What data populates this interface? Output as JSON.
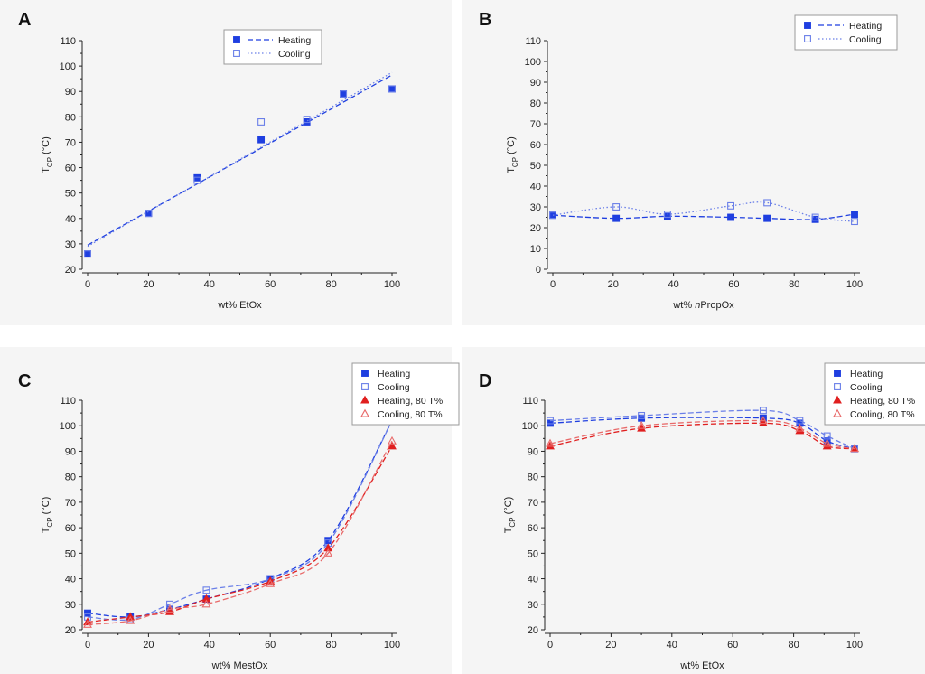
{
  "colors": {
    "blue": "#1f3fe0",
    "blue_light": "#6a7fe8",
    "red": "#e01f1f",
    "red_light": "#e86a6a"
  },
  "chart_data": [
    {
      "id": "A",
      "type": "scatter",
      "panel_label": "A",
      "xlabel": "wt% EtOx",
      "ylabel": "T",
      "ylabel_sub": "CP",
      "ylabel_unit": "(°C)",
      "xlim": [
        0,
        100
      ],
      "ylim": [
        20,
        110
      ],
      "xticks": [
        0,
        20,
        40,
        60,
        80,
        100
      ],
      "yticks": [
        20,
        30,
        40,
        50,
        60,
        70,
        80,
        90,
        100,
        110
      ],
      "legend_position": "top-right",
      "series": [
        {
          "name": "Heating",
          "marker": "filled-square",
          "color": "blue",
          "line": "dashed",
          "x": [
            0,
            20,
            36,
            57,
            72,
            84,
            100
          ],
          "y": [
            26,
            42,
            56,
            71,
            78,
            89,
            91
          ],
          "fit": {
            "kind": "linear",
            "slope": 0.67,
            "intercept": 29.5
          }
        },
        {
          "name": "Cooling",
          "marker": "open-square",
          "color": "blue_light",
          "line": "dotted",
          "x": [
            0,
            20,
            36,
            57,
            72,
            84,
            100
          ],
          "y": [
            26,
            42,
            55,
            78,
            79,
            89,
            91
          ],
          "fit": {
            "kind": "linear",
            "slope": 0.685,
            "intercept": 29.0
          }
        }
      ]
    },
    {
      "id": "B",
      "type": "scatter",
      "panel_label": "B",
      "xlabel_prefix": "wt% ",
      "xlabel_italic": "n",
      "xlabel_rest": "PropOx",
      "ylabel": "T",
      "ylabel_sub": "CP",
      "ylabel_unit": "(°C)",
      "xlim": [
        0,
        100
      ],
      "ylim": [
        0,
        110
      ],
      "xticks": [
        0,
        20,
        40,
        60,
        80,
        100
      ],
      "yticks": [
        0,
        10,
        20,
        30,
        40,
        50,
        60,
        70,
        80,
        90,
        100,
        110
      ],
      "legend_position": "top-right",
      "series": [
        {
          "name": "Heating",
          "marker": "filled-square",
          "color": "blue",
          "line": "dashed",
          "x": [
            0,
            21,
            38,
            59,
            71,
            87,
            100
          ],
          "y": [
            26,
            24.5,
            25.5,
            25,
            24.5,
            24,
            26.5
          ],
          "fit": {
            "kind": "smooth"
          }
        },
        {
          "name": "Cooling",
          "marker": "open-square",
          "color": "blue_light",
          "line": "dotted",
          "x": [
            0,
            21,
            38,
            59,
            71,
            87,
            100
          ],
          "y": [
            26,
            30,
            26.5,
            30.5,
            32,
            25,
            23
          ],
          "fit": {
            "kind": "smooth"
          }
        }
      ]
    },
    {
      "id": "C",
      "type": "scatter",
      "panel_label": "C",
      "xlabel": "wt% MestOx",
      "ylabel": "T",
      "ylabel_sub": "CP",
      "ylabel_unit": "(°C)",
      "xlim": [
        0,
        100
      ],
      "ylim": [
        20,
        110
      ],
      "xticks": [
        0,
        20,
        40,
        60,
        80,
        100
      ],
      "yticks": [
        20,
        30,
        40,
        50,
        60,
        70,
        80,
        90,
        100,
        110
      ],
      "legend_position": "top-right",
      "series": [
        {
          "name": "Heating",
          "marker": "filled-square",
          "color": "blue",
          "line": "dashed",
          "x": [
            0,
            14,
            27,
            39,
            60,
            79,
            100
          ],
          "y": [
            26.5,
            25,
            28,
            32,
            40,
            55,
            102
          ],
          "fit": {
            "kind": "smooth"
          }
        },
        {
          "name": "Cooling",
          "marker": "open-square",
          "color": "blue_light",
          "line": "dashed",
          "x": [
            0,
            14,
            27,
            39,
            60,
            79,
            100
          ],
          "y": [
            25,
            24,
            30,
            35.5,
            40,
            54,
            102
          ],
          "fit": {
            "kind": "smooth"
          }
        },
        {
          "name": "Heating, 80 T%",
          "marker": "filled-triangle",
          "color": "red",
          "line": "dashed",
          "x": [
            0,
            14,
            27,
            39,
            60,
            79,
            100
          ],
          "y": [
            23,
            25,
            27,
            32,
            39,
            52,
            92
          ],
          "fit": {
            "kind": "smooth"
          }
        },
        {
          "name": "Cooling, 80 T%",
          "marker": "open-triangle",
          "color": "red_light",
          "line": "dashed",
          "x": [
            0,
            14,
            27,
            39,
            60,
            79,
            100
          ],
          "y": [
            22,
            23.5,
            28,
            30,
            38,
            50,
            94
          ],
          "fit": {
            "kind": "smooth"
          }
        }
      ]
    },
    {
      "id": "D",
      "type": "scatter",
      "panel_label": "D",
      "xlabel": "wt% EtOx",
      "ylabel": "T",
      "ylabel_sub": "CP",
      "ylabel_unit": "(°C)",
      "xlim": [
        0,
        100
      ],
      "ylim": [
        20,
        110
      ],
      "xticks": [
        0,
        20,
        40,
        60,
        80,
        100
      ],
      "yticks": [
        20,
        30,
        40,
        50,
        60,
        70,
        80,
        90,
        100,
        110
      ],
      "legend_position": "top-right",
      "series": [
        {
          "name": "Heating",
          "marker": "filled-square",
          "color": "blue",
          "line": "dashed",
          "x": [
            0,
            30,
            70,
            82,
            91,
            100
          ],
          "y": [
            101,
            103,
            103,
            101,
            94,
            91
          ],
          "fit": {
            "kind": "smooth"
          }
        },
        {
          "name": "Cooling",
          "marker": "open-square",
          "color": "blue_light",
          "line": "dashed",
          "x": [
            0,
            30,
            70,
            82,
            91,
            100
          ],
          "y": [
            102,
            104,
            106,
            102,
            96,
            91
          ],
          "fit": {
            "kind": "smooth"
          }
        },
        {
          "name": "Heating, 80 T%",
          "marker": "filled-triangle",
          "color": "red",
          "line": "dashed",
          "x": [
            0,
            30,
            70,
            82,
            91,
            100
          ],
          "y": [
            92,
            99,
            101,
            98,
            92,
            91
          ],
          "fit": {
            "kind": "smooth"
          }
        },
        {
          "name": "Cooling, 80 T%",
          "marker": "open-triangle",
          "color": "red_light",
          "line": "dashed",
          "x": [
            0,
            30,
            70,
            82,
            91,
            100
          ],
          "y": [
            93,
            100,
            102,
            99,
            93,
            91
          ],
          "fit": {
            "kind": "smooth"
          }
        }
      ]
    }
  ]
}
